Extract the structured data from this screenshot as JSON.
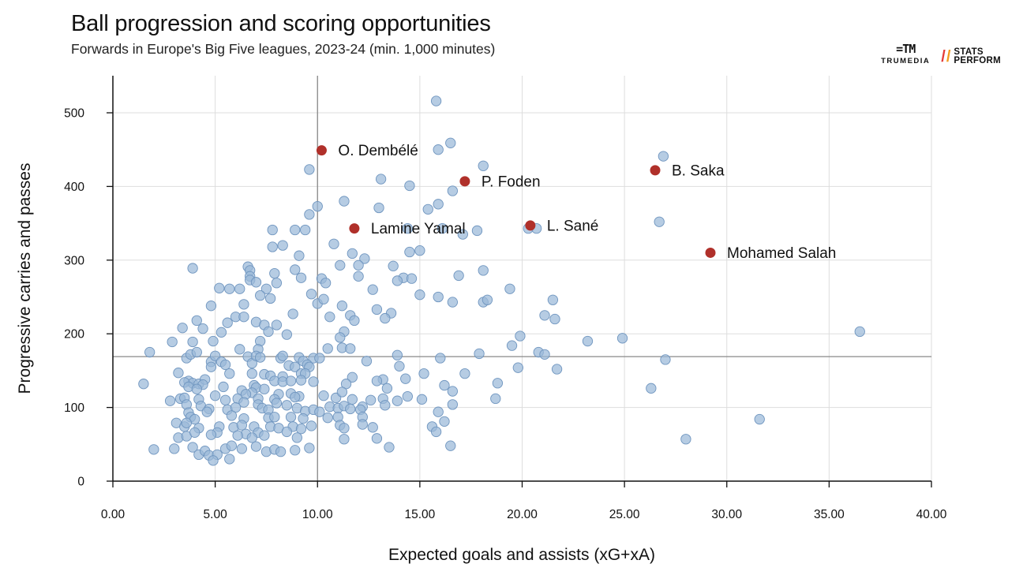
{
  "header": {
    "title": "Ball progression and scoring opportunities",
    "subtitle": "Forwards in Europe's Big Five leagues, 2023-24 (min. 1,000 minutes)"
  },
  "logos": {
    "trumedia_mark": "=TM",
    "trumedia_word": "TRUMEDIA",
    "statsperform_line1": "STATS",
    "statsperform_line2": "PERFORM"
  },
  "colors": {
    "point_fill": "#9ab8d8",
    "point_stroke": "#6f95bf",
    "highlight": "#b0302a",
    "grid": "#dddddd",
    "reference_line": "#888888",
    "axis": "#111111"
  },
  "chart_data": {
    "type": "scatter",
    "xlabel": "Expected goals and assists (xG+xA)",
    "ylabel": "Progressive carries and passes",
    "xlim": [
      0,
      40
    ],
    "ylim": [
      0,
      550
    ],
    "xticks": [
      0,
      5,
      10,
      15,
      20,
      25,
      30,
      35,
      40
    ],
    "xtick_labels": [
      "0.00",
      "5.00",
      "10.00",
      "15.00",
      "20.00",
      "25.00",
      "30.00",
      "35.00",
      "40.00"
    ],
    "yticks": [
      0,
      100,
      200,
      300,
      400,
      500
    ],
    "ytick_labels": [
      "0",
      "100",
      "200",
      "300",
      "400",
      "500"
    ],
    "grid": true,
    "reference_lines": {
      "x": 10.0,
      "y": 169
    },
    "highlighted": [
      {
        "label": "O. Dembélé",
        "x": 10.2,
        "y": 449
      },
      {
        "label": "P. Foden",
        "x": 17.2,
        "y": 407
      },
      {
        "label": "B. Saka",
        "x": 26.5,
        "y": 422
      },
      {
        "label": "Lamine Yamal",
        "x": 11.8,
        "y": 343
      },
      {
        "label": "L. Sané",
        "x": 20.4,
        "y": 347
      },
      {
        "label": "Mohamed Salah",
        "x": 29.2,
        "y": 310
      }
    ],
    "points": [
      [
        15.8,
        516
      ],
      [
        16.5,
        459
      ],
      [
        15.9,
        450
      ],
      [
        18.1,
        428
      ],
      [
        9.6,
        423
      ],
      [
        13.1,
        410
      ],
      [
        14.5,
        401
      ],
      [
        16.6,
        394
      ],
      [
        15.9,
        376
      ],
      [
        10.0,
        373
      ],
      [
        11.3,
        380
      ],
      [
        13.0,
        371
      ],
      [
        15.4,
        369
      ],
      [
        9.6,
        362
      ],
      [
        14.4,
        343
      ],
      [
        16.1,
        343
      ],
      [
        17.8,
        340
      ],
      [
        17.1,
        335
      ],
      [
        20.3,
        343
      ],
      [
        20.7,
        343
      ],
      [
        26.9,
        441
      ],
      [
        26.7,
        352
      ],
      [
        7.8,
        341
      ],
      [
        8.9,
        341
      ],
      [
        9.4,
        341
      ],
      [
        8.3,
        320
      ],
      [
        7.8,
        318
      ],
      [
        11.7,
        309
      ],
      [
        15.0,
        313
      ],
      [
        14.5,
        311
      ],
      [
        9.1,
        306
      ],
      [
        10.8,
        322
      ],
      [
        6.6,
        291
      ],
      [
        6.7,
        286
      ],
      [
        12.3,
        302
      ],
      [
        11.1,
        293
      ],
      [
        12.0,
        293
      ],
      [
        13.7,
        292
      ],
      [
        3.9,
        289
      ],
      [
        8.9,
        287
      ],
      [
        18.1,
        286
      ],
      [
        7.9,
        282
      ],
      [
        6.7,
        278
      ],
      [
        6.7,
        273
      ],
      [
        9.2,
        276
      ],
      [
        10.2,
        275
      ],
      [
        14.2,
        276
      ],
      [
        14.6,
        275
      ],
      [
        16.9,
        279
      ],
      [
        13.9,
        272
      ],
      [
        12.0,
        278
      ],
      [
        7.0,
        270
      ],
      [
        8.0,
        269
      ],
      [
        10.4,
        269
      ],
      [
        5.2,
        262
      ],
      [
        5.7,
        261
      ],
      [
        6.2,
        261
      ],
      [
        7.5,
        261
      ],
      [
        12.7,
        260
      ],
      [
        19.4,
        261
      ],
      [
        7.2,
        252
      ],
      [
        7.7,
        248
      ],
      [
        9.7,
        254
      ],
      [
        10.0,
        241
      ],
      [
        10.3,
        247
      ],
      [
        15.0,
        253
      ],
      [
        15.9,
        250
      ],
      [
        16.6,
        243
      ],
      [
        18.1,
        243
      ],
      [
        18.3,
        246
      ],
      [
        21.5,
        246
      ],
      [
        4.8,
        238
      ],
      [
        6.4,
        240
      ],
      [
        8.8,
        227
      ],
      [
        11.2,
        238
      ],
      [
        12.9,
        233
      ],
      [
        13.6,
        228
      ],
      [
        13.3,
        221
      ],
      [
        11.6,
        225
      ],
      [
        11.8,
        218
      ],
      [
        10.6,
        223
      ],
      [
        21.1,
        225
      ],
      [
        21.6,
        220
      ],
      [
        4.1,
        218
      ],
      [
        5.6,
        215
      ],
      [
        6.0,
        223
      ],
      [
        6.4,
        223
      ],
      [
        7.0,
        216
      ],
      [
        7.4,
        212
      ],
      [
        8.0,
        212
      ],
      [
        3.4,
        208
      ],
      [
        4.4,
        207
      ],
      [
        5.3,
        202
      ],
      [
        7.6,
        203
      ],
      [
        11.3,
        203
      ],
      [
        11.1,
        195
      ],
      [
        4.9,
        190
      ],
      [
        3.9,
        189
      ],
      [
        2.9,
        189
      ],
      [
        7.2,
        190
      ],
      [
        8.5,
        199
      ],
      [
        6.2,
        179
      ],
      [
        7.1,
        179
      ],
      [
        10.5,
        180
      ],
      [
        11.2,
        181
      ],
      [
        11.6,
        180
      ],
      [
        12.4,
        163
      ],
      [
        13.9,
        171
      ],
      [
        16.0,
        167
      ],
      [
        17.9,
        173
      ],
      [
        19.5,
        184
      ],
      [
        19.9,
        197
      ],
      [
        20.8,
        175
      ],
      [
        21.1,
        172
      ],
      [
        23.2,
        190
      ],
      [
        24.9,
        194
      ],
      [
        27.0,
        165
      ],
      [
        36.5,
        203
      ],
      [
        1.8,
        175
      ],
      [
        3.6,
        167
      ],
      [
        3.8,
        172
      ],
      [
        4.1,
        175
      ],
      [
        4.8,
        162
      ],
      [
        5.0,
        170
      ],
      [
        5.3,
        162
      ],
      [
        5.5,
        158
      ],
      [
        4.8,
        155
      ],
      [
        6.6,
        169
      ],
      [
        6.8,
        160
      ],
      [
        7.0,
        170
      ],
      [
        7.2,
        168
      ],
      [
        8.2,
        167
      ],
      [
        8.3,
        170
      ],
      [
        9.1,
        168
      ],
      [
        9.3,
        163
      ],
      [
        9.8,
        167
      ],
      [
        10.1,
        167
      ],
      [
        8.6,
        157
      ],
      [
        8.9,
        155
      ],
      [
        9.5,
        158
      ],
      [
        9.6,
        155
      ],
      [
        14.0,
        156
      ],
      [
        19.8,
        154
      ],
      [
        21.7,
        152
      ],
      [
        3.2,
        147
      ],
      [
        5.7,
        146
      ],
      [
        6.8,
        146
      ],
      [
        7.4,
        145
      ],
      [
        7.7,
        143
      ],
      [
        8.3,
        142
      ],
      [
        9.2,
        146
      ],
      [
        9.4,
        146
      ],
      [
        11.7,
        141
      ],
      [
        13.2,
        138
      ],
      [
        14.3,
        139
      ],
      [
        15.2,
        146
      ],
      [
        17.2,
        146
      ],
      [
        3.7,
        136
      ],
      [
        3.9,
        133
      ],
      [
        4.2,
        132
      ],
      [
        4.5,
        138
      ],
      [
        4.4,
        131
      ],
      [
        3.5,
        134
      ],
      [
        3.7,
        128
      ],
      [
        4.1,
        125
      ],
      [
        6.9,
        130
      ],
      [
        7.0,
        127
      ],
      [
        7.9,
        136
      ],
      [
        8.3,
        135
      ],
      [
        8.7,
        136
      ],
      [
        9.2,
        137
      ],
      [
        9.8,
        135
      ],
      [
        11.4,
        132
      ],
      [
        12.9,
        136
      ],
      [
        13.4,
        126
      ],
      [
        16.2,
        130
      ],
      [
        16.6,
        122
      ],
      [
        18.8,
        133
      ],
      [
        26.3,
        126
      ],
      [
        1.5,
        132
      ],
      [
        5.4,
        128
      ],
      [
        6.3,
        123
      ],
      [
        6.8,
        120
      ],
      [
        7.4,
        125
      ],
      [
        8.1,
        118
      ],
      [
        8.7,
        119
      ],
      [
        9.1,
        115
      ],
      [
        3.3,
        112
      ],
      [
        3.5,
        113
      ],
      [
        2.8,
        109
      ],
      [
        4.2,
        111
      ],
      [
        5.0,
        116
      ],
      [
        5.5,
        110
      ],
      [
        6.1,
        112
      ],
      [
        6.5,
        118
      ],
      [
        7.1,
        112
      ],
      [
        7.9,
        111
      ],
      [
        8.9,
        114
      ],
      [
        10.3,
        116
      ],
      [
        10.9,
        113
      ],
      [
        11.2,
        121
      ],
      [
        11.7,
        111
      ],
      [
        12.2,
        101
      ],
      [
        12.6,
        110
      ],
      [
        13.2,
        112
      ],
      [
        13.9,
        109
      ],
      [
        14.4,
        115
      ],
      [
        15.1,
        111
      ],
      [
        18.7,
        112
      ],
      [
        3.6,
        104
      ],
      [
        4.3,
        102
      ],
      [
        4.7,
        98
      ],
      [
        5.6,
        97
      ],
      [
        6.0,
        100
      ],
      [
        6.4,
        107
      ],
      [
        7.1,
        104
      ],
      [
        7.3,
        99
      ],
      [
        7.6,
        97
      ],
      [
        8.0,
        106
      ],
      [
        8.5,
        103
      ],
      [
        9.0,
        99
      ],
      [
        9.4,
        95
      ],
      [
        9.8,
        97
      ],
      [
        10.1,
        94
      ],
      [
        10.6,
        101
      ],
      [
        11.0,
        99
      ],
      [
        11.3,
        102
      ],
      [
        11.6,
        98
      ],
      [
        12.1,
        97
      ],
      [
        13.3,
        103
      ],
      [
        16.6,
        104
      ],
      [
        3.7,
        93
      ],
      [
        4.6,
        94
      ],
      [
        3.8,
        87
      ],
      [
        4.0,
        84
      ],
      [
        5.8,
        89
      ],
      [
        6.4,
        85
      ],
      [
        7.6,
        86
      ],
      [
        7.9,
        87
      ],
      [
        8.7,
        87
      ],
      [
        9.3,
        85
      ],
      [
        10.5,
        86
      ],
      [
        11.0,
        87
      ],
      [
        12.2,
        87
      ],
      [
        15.9,
        94
      ],
      [
        3.1,
        79
      ],
      [
        3.5,
        74
      ],
      [
        3.6,
        79
      ],
      [
        4.2,
        72
      ],
      [
        5.2,
        74
      ],
      [
        5.9,
        73
      ],
      [
        6.3,
        76
      ],
      [
        6.9,
        74
      ],
      [
        7.7,
        74
      ],
      [
        8.1,
        72
      ],
      [
        8.8,
        74
      ],
      [
        9.7,
        75
      ],
      [
        11.1,
        76
      ],
      [
        11.3,
        72
      ],
      [
        12.2,
        77
      ],
      [
        12.7,
        73
      ],
      [
        15.6,
        74
      ],
      [
        16.2,
        81
      ],
      [
        5.1,
        66
      ],
      [
        6.5,
        64
      ],
      [
        7.1,
        66
      ],
      [
        8.5,
        67
      ],
      [
        9.2,
        71
      ],
      [
        3.2,
        59
      ],
      [
        3.6,
        61
      ],
      [
        4.0,
        66
      ],
      [
        4.8,
        63
      ],
      [
        6.1,
        62
      ],
      [
        6.8,
        59
      ],
      [
        7.4,
        62
      ],
      [
        9.0,
        59
      ],
      [
        12.9,
        58
      ],
      [
        11.3,
        57
      ],
      [
        15.8,
        67
      ],
      [
        31.6,
        84
      ],
      [
        28.0,
        57
      ],
      [
        2.0,
        43
      ],
      [
        3.0,
        44
      ],
      [
        3.9,
        46
      ],
      [
        4.2,
        36
      ],
      [
        4.5,
        41
      ],
      [
        4.7,
        35
      ],
      [
        5.1,
        36
      ],
      [
        5.5,
        44
      ],
      [
        5.8,
        48
      ],
      [
        4.9,
        28
      ],
      [
        5.7,
        30
      ],
      [
        6.3,
        44
      ],
      [
        7.0,
        47
      ],
      [
        7.5,
        40
      ],
      [
        7.9,
        43
      ],
      [
        8.2,
        40
      ],
      [
        8.9,
        42
      ],
      [
        9.6,
        45
      ],
      [
        13.5,
        46
      ],
      [
        16.5,
        48
      ]
    ]
  }
}
